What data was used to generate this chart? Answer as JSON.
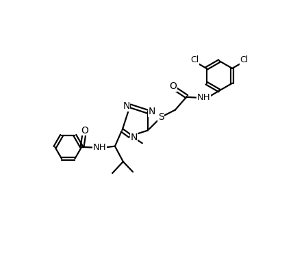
{
  "bg_color": "#ffffff",
  "line_color": "#000000",
  "line_width": 1.6,
  "font_size": 9.5,
  "figsize": [
    4.28,
    3.8
  ],
  "dpi": 100,
  "xlim": [
    0,
    10
  ],
  "ylim": [
    0,
    10
  ]
}
